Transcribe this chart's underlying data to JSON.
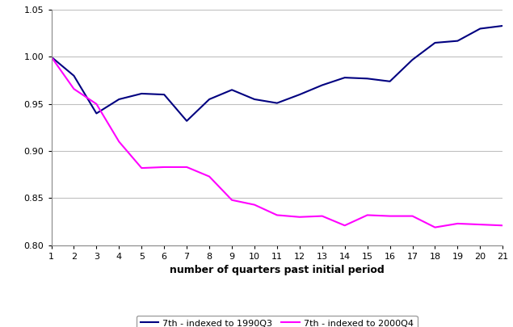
{
  "series1_label": "7th - indexed to 1990Q3",
  "series2_label": "7th - indexed to 2000Q4",
  "series1_color": "#000080",
  "series2_color": "#FF00FF",
  "series1_y": [
    1.0,
    0.98,
    0.94,
    0.955,
    0.961,
    0.96,
    0.932,
    0.955,
    0.965,
    0.955,
    0.951,
    0.96,
    0.97,
    0.978,
    0.977,
    0.974,
    0.997,
    1.015,
    1.017,
    1.03,
    1.033
  ],
  "series2_y": [
    1.0,
    0.966,
    0.95,
    0.91,
    0.882,
    0.883,
    0.883,
    0.873,
    0.848,
    0.843,
    0.832,
    0.83,
    0.831,
    0.821,
    0.832,
    0.831,
    0.831,
    0.819,
    0.823,
    0.822,
    0.821
  ],
  "x": [
    1,
    2,
    3,
    4,
    5,
    6,
    7,
    8,
    9,
    10,
    11,
    12,
    13,
    14,
    15,
    16,
    17,
    18,
    19,
    20,
    21
  ],
  "xlabel": "number of quarters past initial period",
  "ylim": [
    0.8,
    1.05
  ],
  "xlim": [
    1,
    21
  ],
  "yticks": [
    0.8,
    0.85,
    0.9,
    0.95,
    1.0,
    1.05
  ],
  "xticks": [
    1,
    2,
    3,
    4,
    5,
    6,
    7,
    8,
    9,
    10,
    11,
    12,
    13,
    14,
    15,
    16,
    17,
    18,
    19,
    20,
    21
  ],
  "background_color": "#FFFFFF",
  "grid_color": "#C0C0C0",
  "legend_fontsize": 8,
  "xlabel_fontsize": 9,
  "tick_fontsize": 8
}
